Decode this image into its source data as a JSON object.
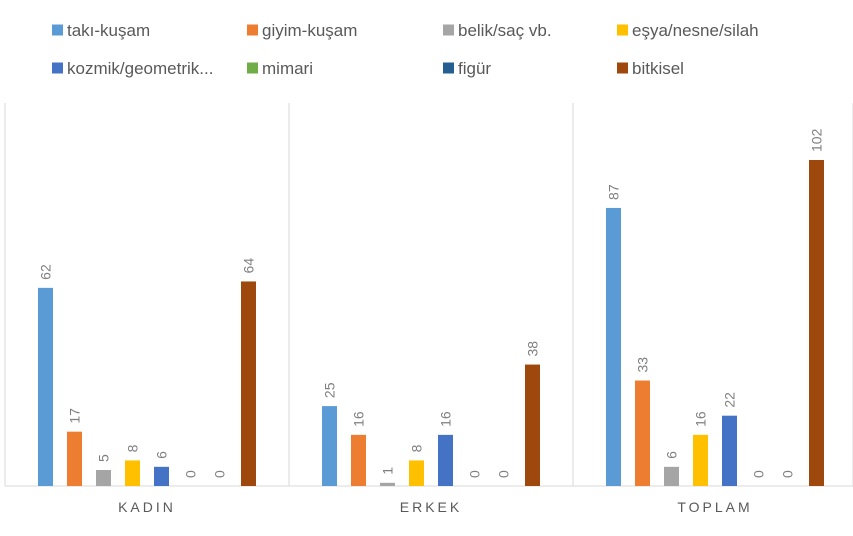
{
  "chart_data": {
    "type": "bar",
    "title": "",
    "xlabel": "",
    "ylabel": "",
    "categories": [
      "KADIN",
      "ERKEK",
      "TOPLAM"
    ],
    "ylim": [
      0,
      110
    ],
    "grid": false,
    "legend_position": "top",
    "series": [
      {
        "name": "takı-kuşam",
        "color": "#5B9BD5",
        "values": [
          62,
          25,
          87
        ]
      },
      {
        "name": "giyim-kuşam",
        "color": "#ED7D31",
        "values": [
          17,
          16,
          33
        ]
      },
      {
        "name": "belik/saç vb.",
        "color": "#A5A5A5",
        "values": [
          5,
          1,
          6
        ]
      },
      {
        "name": "eşya/nesne/silah",
        "color": "#FFC000",
        "values": [
          8,
          8,
          16
        ]
      },
      {
        "name": "kozmik/geometrik...",
        "color": "#4472C4",
        "values": [
          6,
          16,
          22
        ]
      },
      {
        "name": "mimari",
        "color": "#70AD47",
        "values": [
          0,
          0,
          0
        ]
      },
      {
        "name": "figür",
        "color": "#255E91",
        "values": [
          0,
          0,
          0
        ]
      },
      {
        "name": "bitkisel",
        "color": "#9E480E",
        "values": [
          64,
          38,
          102
        ]
      }
    ]
  }
}
